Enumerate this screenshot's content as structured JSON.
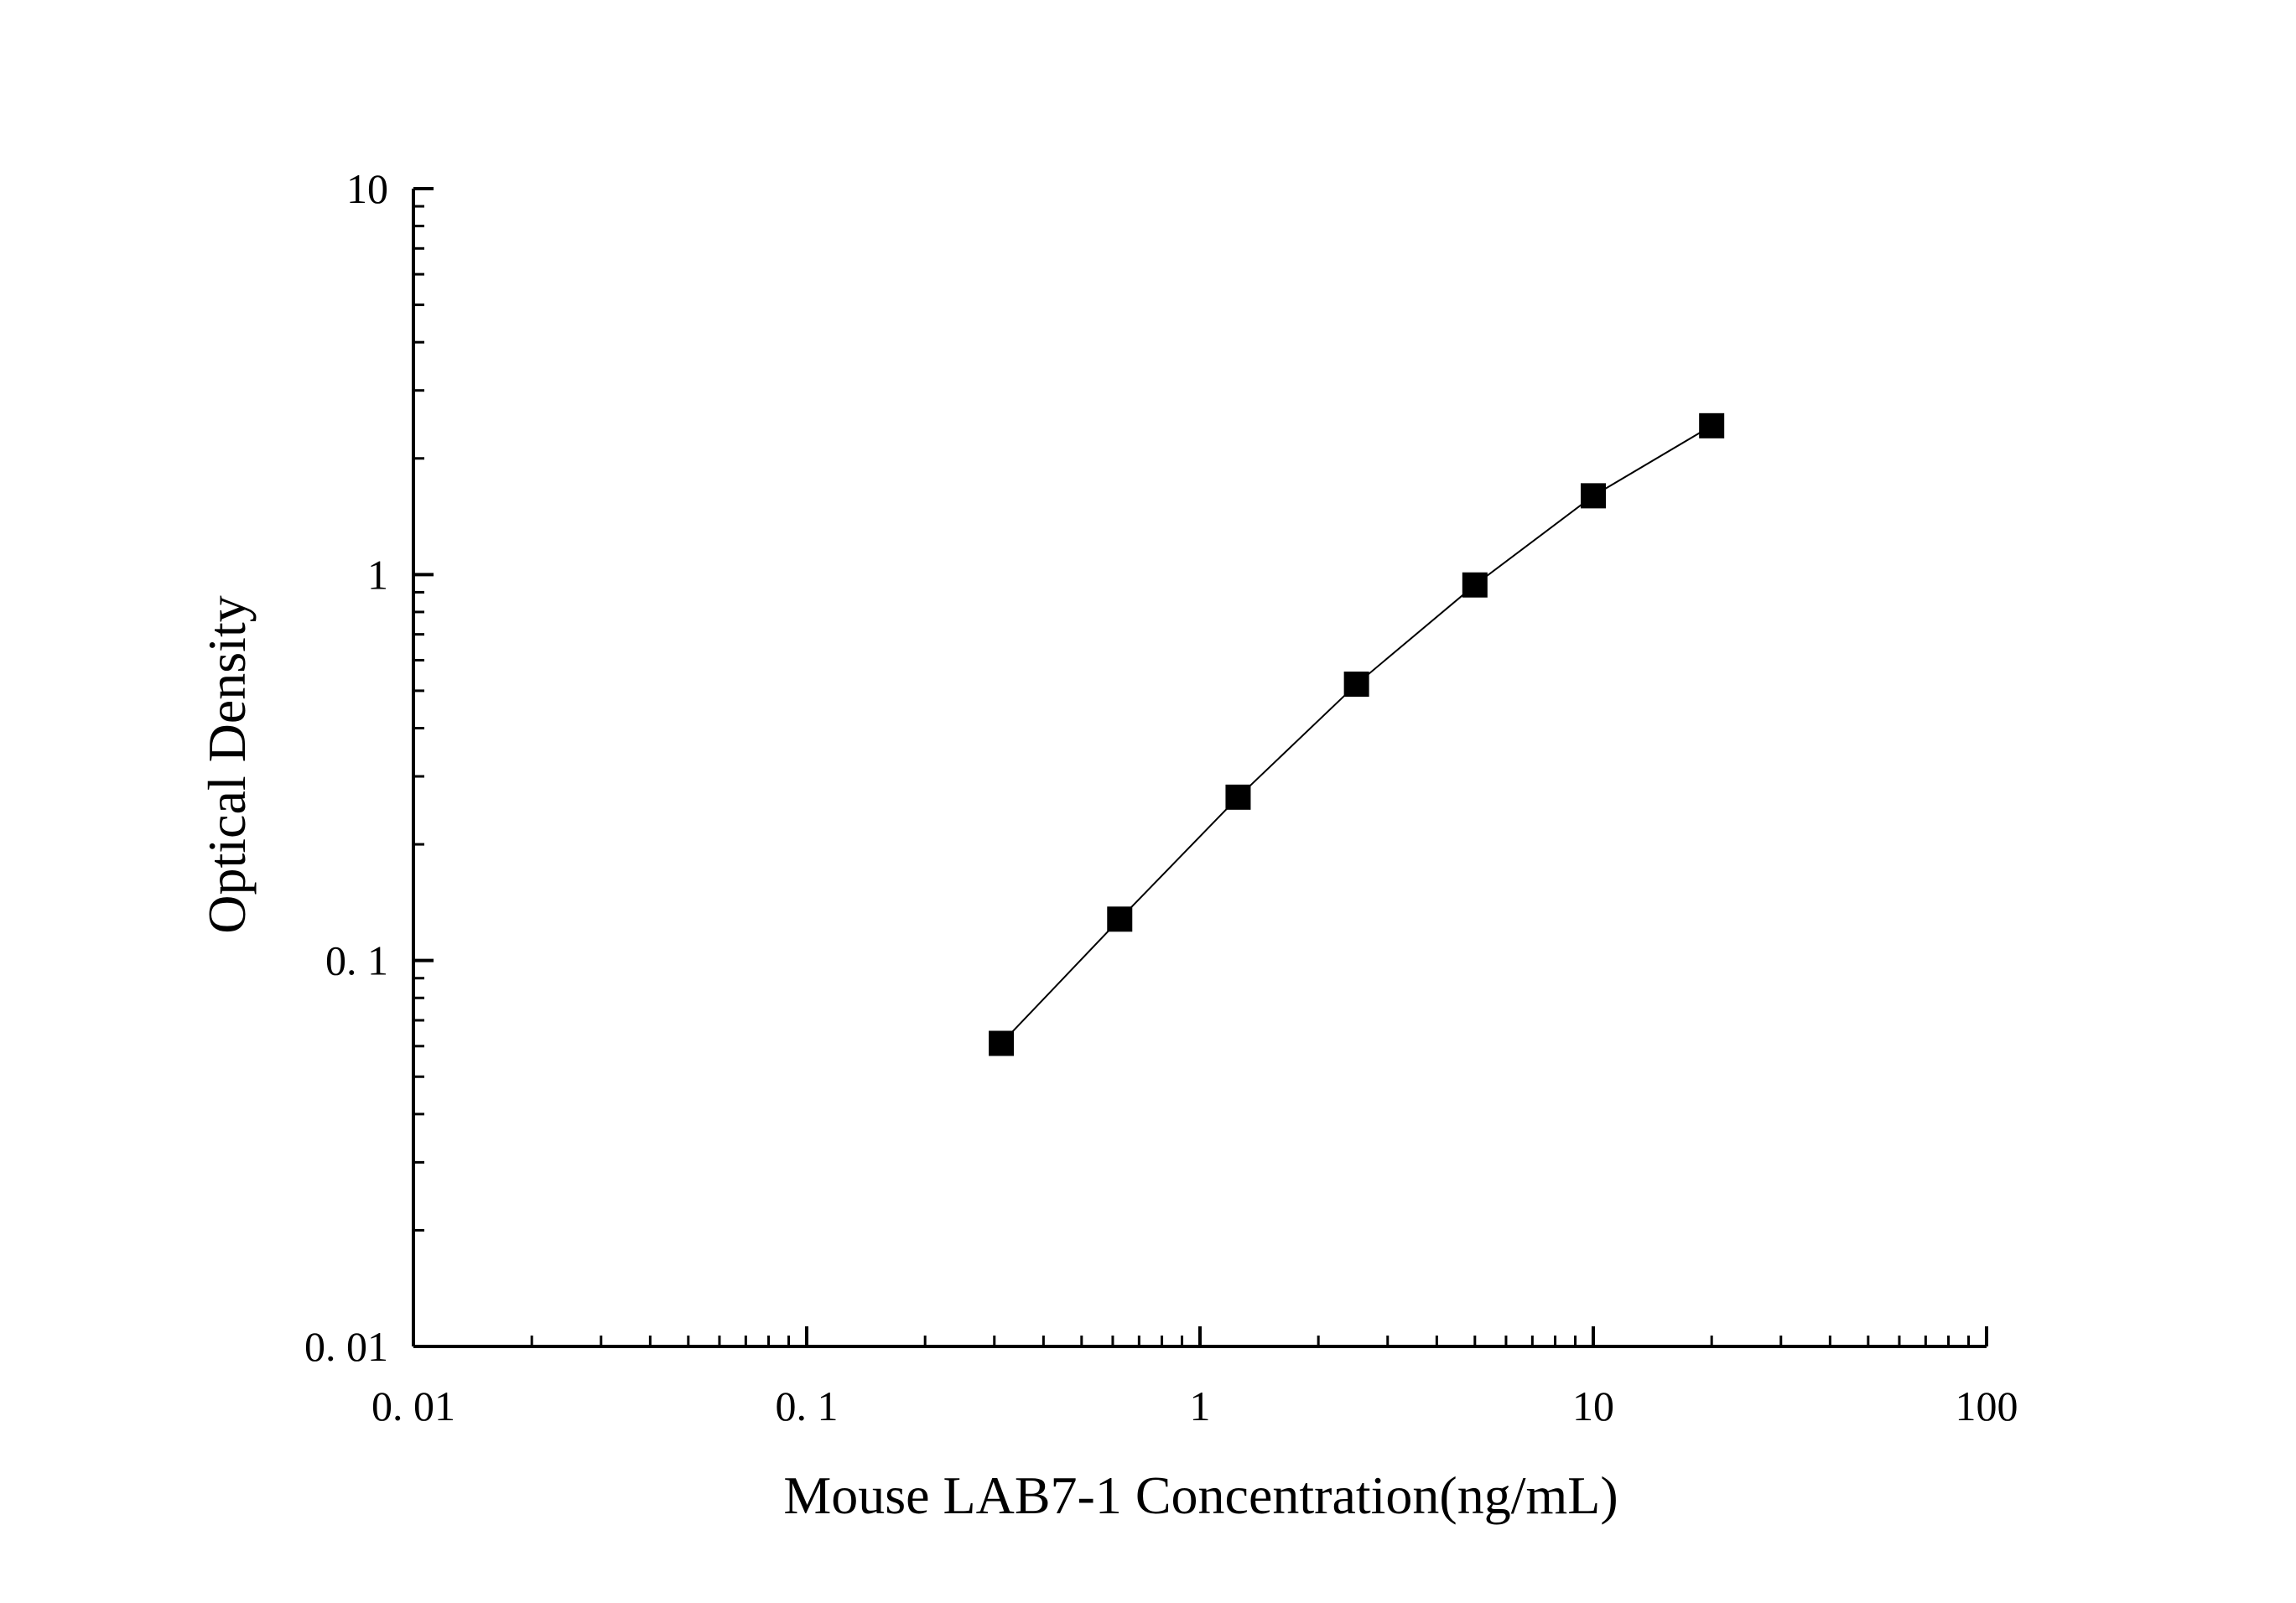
{
  "chart_data": {
    "type": "line",
    "xlabel": "Mouse LAB7-1 Concentration(ng/mL)",
    "ylabel": "Optical Density",
    "xscale": "log",
    "yscale": "log",
    "xlim": [
      0.01,
      100
    ],
    "ylim": [
      0.01,
      10
    ],
    "x_ticks": [
      {
        "value": 0.01,
        "label": "0. 01"
      },
      {
        "value": 0.1,
        "label": "0. 1"
      },
      {
        "value": 1,
        "label": "1"
      },
      {
        "value": 10,
        "label": "10"
      },
      {
        "value": 100,
        "label": "100"
      }
    ],
    "y_ticks": [
      {
        "value": 0.01,
        "label": "0. 01"
      },
      {
        "value": 0.1,
        "label": "0. 1"
      },
      {
        "value": 1,
        "label": "1"
      },
      {
        "value": 10,
        "label": "10"
      }
    ],
    "grid": false,
    "marker": "square",
    "color": "#000000",
    "series": [
      {
        "x": [
          0.3125,
          0.625,
          1.25,
          2.5,
          5,
          10,
          20
        ],
        "y": [
          0.061,
          0.128,
          0.265,
          0.52,
          0.94,
          1.6,
          2.43
        ]
      }
    ]
  }
}
